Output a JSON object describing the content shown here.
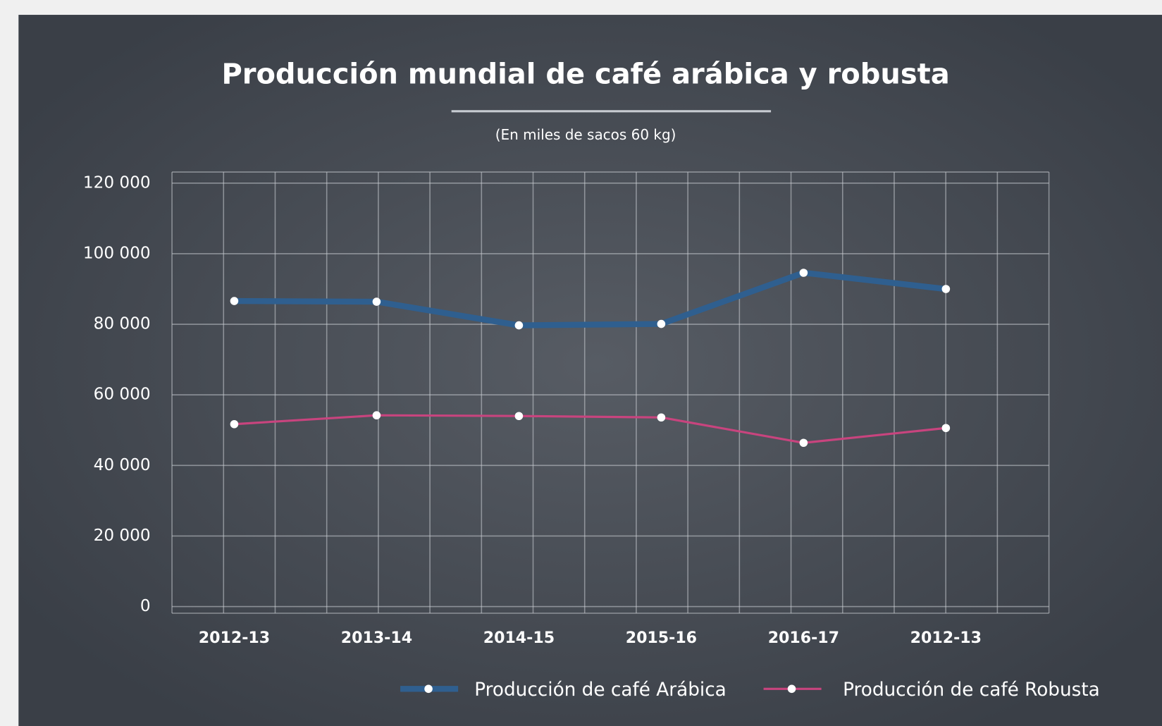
{
  "chart_data": {
    "type": "line",
    "title": "Producción mundial de café arábica y robusta",
    "subtitle": "(En miles de sacos 60 kg)",
    "categories": [
      "2012-13",
      "2013-14",
      "2014-15",
      "2015-16",
      "2016-17",
      "2012-13"
    ],
    "series": [
      {
        "name": "Producción de café Arábica",
        "color": "#2f5f8f",
        "values": [
          86600,
          86400,
          79700,
          80100,
          94600,
          90000
        ]
      },
      {
        "name": "Producción de café Robusta",
        "color": "#c8447e",
        "values": [
          51700,
          54200,
          54000,
          53600,
          46400,
          50600
        ]
      }
    ],
    "ylim": [
      0,
      120000
    ],
    "yticks": [
      0,
      {
        "value": 20000,
        "label": "20 000"
      },
      {
        "value": 40000,
        "label": "40 000"
      },
      {
        "value": 60000,
        "label": "60 000"
      },
      {
        "value": 80000,
        "label": "80 000"
      },
      {
        "value": 100000,
        "label": "100 000"
      },
      {
        "value": 120000,
        "label": "120 000"
      }
    ],
    "grid": true,
    "legend": "bottom"
  }
}
